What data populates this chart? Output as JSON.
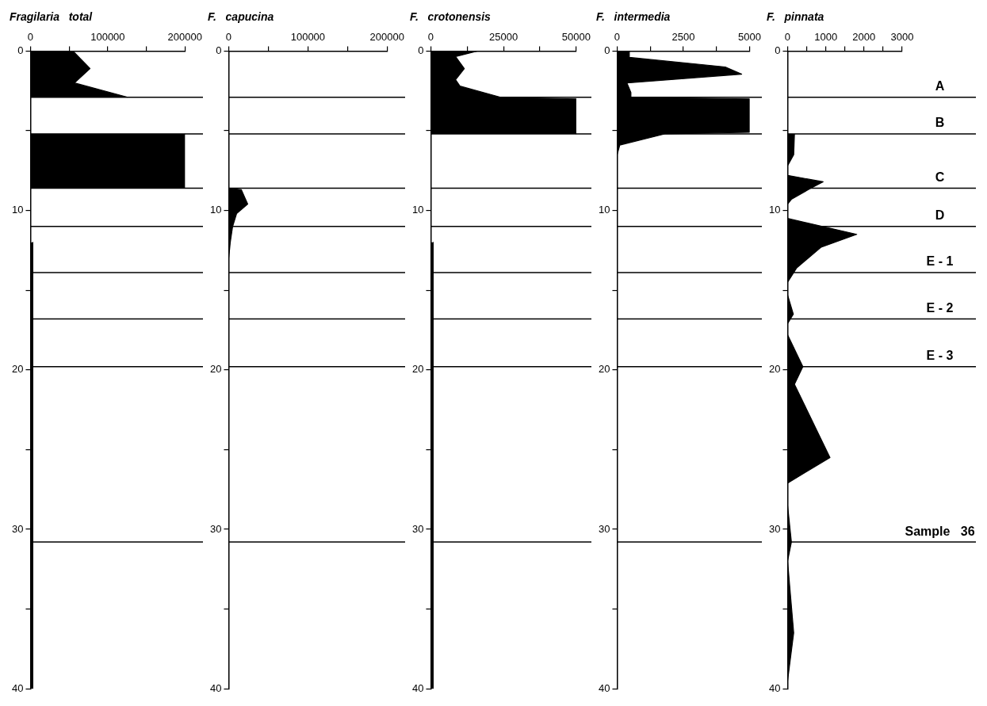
{
  "chart_data": [
    {
      "type": "area",
      "title": "Fragilaria   total",
      "orientation": "horizontal",
      "color": "#000000",
      "x": [
        0,
        1.1,
        2.0,
        2.9,
        3.0,
        5.1,
        5.2,
        6.0,
        7.0,
        8.6,
        8.7,
        11.9,
        12,
        20,
        30,
        40
      ],
      "values": [
        55000,
        77000,
        57000,
        126000,
        null,
        null,
        200000,
        200000,
        200000,
        200000,
        null,
        null,
        3000,
        3000,
        3000,
        3000
      ],
      "xlim": [
        0,
        200000
      ],
      "xticks": [
        0,
        {
          "value": 50000,
          "label": null
        },
        100000,
        {
          "value": 150000,
          "label": null
        },
        200000
      ],
      "ylim": [
        40,
        0
      ],
      "yticks": [
        0,
        {
          "value": 5,
          "label": null
        },
        10,
        {
          "value": 15,
          "label": null
        },
        20,
        {
          "value": 25,
          "label": null
        },
        30,
        {
          "value": 35,
          "label": null
        },
        40
      ],
      "grid": false,
      "legend": false,
      "ref_lines": [
        {
          "axis": "y",
          "value": 2.9
        },
        {
          "axis": "y",
          "value": 5.2
        },
        {
          "axis": "y",
          "value": 8.6
        },
        {
          "axis": "y",
          "value": 11.0
        },
        {
          "axis": "y",
          "value": 13.9
        },
        {
          "axis": "y",
          "value": 16.8
        },
        {
          "axis": "y",
          "value": 19.8
        },
        {
          "axis": "y",
          "value": 30.8
        }
      ]
    },
    {
      "type": "area",
      "title": "F.   capucina",
      "orientation": "horizontal",
      "color": "#000000",
      "x": [
        5.2,
        8.6,
        8.7,
        9.6,
        10.2,
        11.0,
        12.0,
        13,
        40
      ],
      "values": [
        0,
        0,
        16000,
        24000,
        10000,
        5000,
        2000,
        0,
        0
      ],
      "xlim": [
        0,
        200000
      ],
      "xticks": [
        0,
        {
          "value": 50000,
          "label": null
        },
        100000,
        {
          "value": 150000,
          "label": null
        },
        200000
      ],
      "ylim": [
        40,
        0
      ],
      "yticks": [
        0,
        {
          "value": 5,
          "label": null
        },
        10,
        {
          "value": 15,
          "label": null
        },
        20,
        {
          "value": 25,
          "label": null
        },
        30,
        {
          "value": 35,
          "label": null
        },
        40
      ],
      "grid": false,
      "legend": false,
      "ref_lines": [
        {
          "axis": "y",
          "value": 2.9
        },
        {
          "axis": "y",
          "value": 5.2
        },
        {
          "axis": "y",
          "value": 8.6
        },
        {
          "axis": "y",
          "value": 11.0
        },
        {
          "axis": "y",
          "value": 13.9
        },
        {
          "axis": "y",
          "value": 16.8
        },
        {
          "axis": "y",
          "value": 19.8
        },
        {
          "axis": "y",
          "value": 30.8
        }
      ]
    },
    {
      "type": "area",
      "title": "F.   crotonensis",
      "orientation": "horizontal",
      "color": "#000000",
      "x": [
        0,
        0.35,
        1.1,
        1.8,
        2.2,
        2.9,
        3.0,
        5.2,
        5.3,
        11.9,
        12,
        40
      ],
      "values": [
        16000,
        8500,
        11500,
        8500,
        10000,
        24000,
        50000,
        50000,
        null,
        null,
        800,
        800
      ],
      "xlim": [
        0,
        50000
      ],
      "xticks": [
        0,
        {
          "value": 12500,
          "label": null
        },
        25000,
        {
          "value": 37500,
          "label": null
        },
        50000
      ],
      "ylim": [
        40,
        0
      ],
      "yticks": [
        0,
        {
          "value": 5,
          "label": null
        },
        10,
        {
          "value": 15,
          "label": null
        },
        20,
        {
          "value": 25,
          "label": null
        },
        30,
        {
          "value": 35,
          "label": null
        },
        40
      ],
      "grid": false,
      "legend": false,
      "ref_lines": [
        {
          "axis": "y",
          "value": 2.9
        },
        {
          "axis": "y",
          "value": 5.2
        },
        {
          "axis": "y",
          "value": 8.6
        },
        {
          "axis": "y",
          "value": 11.0
        },
        {
          "axis": "y",
          "value": 13.9
        },
        {
          "axis": "y",
          "value": 16.8
        },
        {
          "axis": "y",
          "value": 19.8
        },
        {
          "axis": "y",
          "value": 30.8
        }
      ]
    },
    {
      "type": "area",
      "title": "F.   intermedia",
      "orientation": "horizontal",
      "color": "#000000",
      "x": [
        0,
        0.4,
        1.0,
        1.45,
        2.0,
        2.6,
        2.9,
        3.0,
        5.1,
        5.2,
        5.9,
        6.5,
        40
      ],
      "values": [
        460,
        460,
        4080,
        4700,
        370,
        520,
        520,
        5000,
        5000,
        1800,
        100,
        0,
        0
      ],
      "xlim": [
        0,
        5000
      ],
      "xticks": [
        0,
        {
          "value": 1250,
          "label": null
        },
        2500,
        {
          "value": 3750,
          "label": null
        },
        5000
      ],
      "ylim": [
        40,
        0
      ],
      "yticks": [
        0,
        {
          "value": 5,
          "label": null
        },
        10,
        {
          "value": 15,
          "label": null
        },
        20,
        {
          "value": 25,
          "label": null
        },
        30,
        {
          "value": 35,
          "label": null
        },
        40
      ],
      "grid": false,
      "legend": false,
      "ref_lines": [
        {
          "axis": "y",
          "value": 2.9
        },
        {
          "axis": "y",
          "value": 5.2
        },
        {
          "axis": "y",
          "value": 8.6
        },
        {
          "axis": "y",
          "value": 11.0
        },
        {
          "axis": "y",
          "value": 13.9
        },
        {
          "axis": "y",
          "value": 16.8
        },
        {
          "axis": "y",
          "value": 19.8
        },
        {
          "axis": "y",
          "value": 30.8
        }
      ]
    },
    {
      "type": "area",
      "title": "F.   pinnata",
      "orientation": "horizontal",
      "color": "#000000",
      "x": [
        5.2,
        6.5,
        7.2,
        7.8,
        8.2,
        8.6,
        9.3,
        9.6,
        10.5,
        11.5,
        12.3,
        13.6,
        14.5,
        15.3,
        16.5,
        17.1,
        17.8,
        19.8,
        20.9,
        25.5,
        27.1,
        28.5,
        30.8,
        32,
        36.5,
        39.5
      ],
      "values": [
        180,
        160,
        0,
        0,
        930,
        610,
        100,
        0,
        0,
        1810,
        880,
        240,
        0,
        0,
        150,
        0,
        0,
        400,
        180,
        1110,
        0,
        0,
        100,
        0,
        160,
        0
      ],
      "xlim": [
        0,
        3000
      ],
      "xticks": [
        0,
        {
          "value": 500,
          "label": null
        },
        1000,
        {
          "value": 1500,
          "label": null
        },
        2000,
        {
          "value": 2500,
          "label": null
        },
        3000
      ],
      "ylim": [
        40,
        0
      ],
      "yticks": [
        0,
        {
          "value": 5,
          "label": null
        },
        10,
        {
          "value": 15,
          "label": null
        },
        20,
        {
          "value": 25,
          "label": null
        },
        30,
        {
          "value": 35,
          "label": null
        },
        40
      ],
      "grid": false,
      "legend": false,
      "ref_lines": [
        {
          "axis": "y",
          "value": 2.9,
          "label": "A"
        },
        {
          "axis": "y",
          "value": 5.2,
          "label": "B"
        },
        {
          "axis": "y",
          "value": 8.6,
          "label": "C"
        },
        {
          "axis": "y",
          "value": 11.0,
          "label": "D"
        },
        {
          "axis": "y",
          "value": 13.9,
          "label": "E - 1"
        },
        {
          "axis": "y",
          "value": 16.8,
          "label": "E - 2"
        },
        {
          "axis": "y",
          "value": 19.8,
          "label": "E - 3"
        },
        {
          "axis": "y",
          "value": 30.8,
          "label": "Sample   36"
        }
      ]
    }
  ]
}
